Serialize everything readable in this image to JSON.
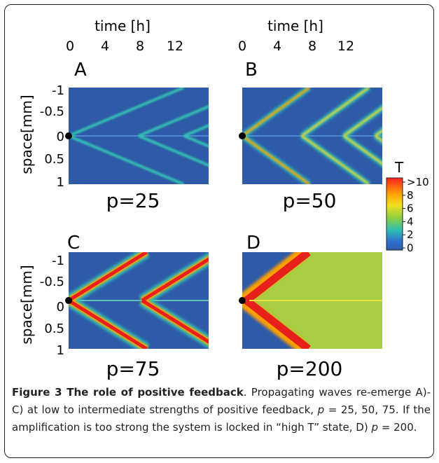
{
  "figure": {
    "time_axis_label": "time [h]",
    "space_axis_label": "space[mm]",
    "time_ticks": [
      "0",
      "4",
      "8",
      "12"
    ],
    "space_ticks": [
      "-1",
      "-0.5",
      "0",
      "0.5",
      "1"
    ],
    "colorbar": {
      "title": "T",
      "ticks": [
        ">10",
        "8",
        "6",
        "4",
        "2",
        "0"
      ],
      "colors": [
        "#ff2020",
        "#ffa000",
        "#f0e020",
        "#90d040",
        "#30c0b0",
        "#3070d0",
        "#2e5aa8"
      ]
    },
    "panels": [
      {
        "letter": "A",
        "label": "p=25",
        "mode": "weak"
      },
      {
        "letter": "B",
        "label": "p=50",
        "mode": "medium"
      },
      {
        "letter": "C",
        "label": "p=75",
        "mode": "strong"
      },
      {
        "letter": "D",
        "label": "p=200",
        "mode": "locked"
      }
    ],
    "colors": {
      "background": "#2e5aa8",
      "cyan": "#30c0b0",
      "red": "#e8201c",
      "orange": "#ffa000",
      "green": "#a8cc44"
    }
  },
  "caption": {
    "title": "Figure 3 The role of positive feedback",
    "title_end": ".",
    "text_a": " Propagating waves re-emerge A)-C) at low to intermediate strengths of positive feedback, ",
    "p1": "p",
    "text_b": " = 25, 50, 75. If the amplification is too strong the system is locked in “high T” state, D) ",
    "p2": "p",
    "text_c": " = 200."
  }
}
